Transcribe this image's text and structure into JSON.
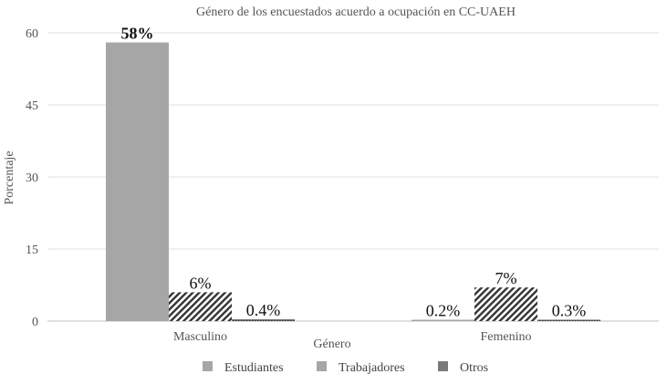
{
  "chart_data": {
    "type": "bar",
    "title": "Género de los encuestados acuerdo a ocupación en CC-UAEH",
    "xlabel": "Género",
    "ylabel": "Porcentaje",
    "ylim": [
      0,
      60
    ],
    "yticks": [
      "0",
      "15",
      "30",
      "45",
      "60"
    ],
    "categories": [
      "Masculino",
      "Femenino"
    ],
    "series": [
      {
        "name": "Estudiantes",
        "values": [
          58,
          0.2
        ],
        "labels": [
          "58%",
          "0.2%"
        ],
        "color": "#a6a6a6",
        "pattern": "solid"
      },
      {
        "name": "Trabajadores",
        "values": [
          6,
          7
        ],
        "labels": [
          "6%",
          "7%"
        ],
        "color": "#333333",
        "pattern": "hatch"
      },
      {
        "name": "Otros",
        "values": [
          0.4,
          0.3
        ],
        "labels": [
          "0.4%",
          "0.3%"
        ],
        "color": "#555555",
        "pattern": "dots"
      }
    ],
    "grid": true,
    "legend": "bottom"
  },
  "legend": {
    "items": [
      {
        "label": "Estudiantes",
        "color": "#a6a6a6",
        "icon": "square-icon"
      },
      {
        "label": "Trabajadores",
        "color": "#a6a6a6",
        "icon": "square-icon"
      },
      {
        "label": "Otros",
        "color": "#7a7a7a",
        "icon": "square-icon"
      }
    ]
  }
}
